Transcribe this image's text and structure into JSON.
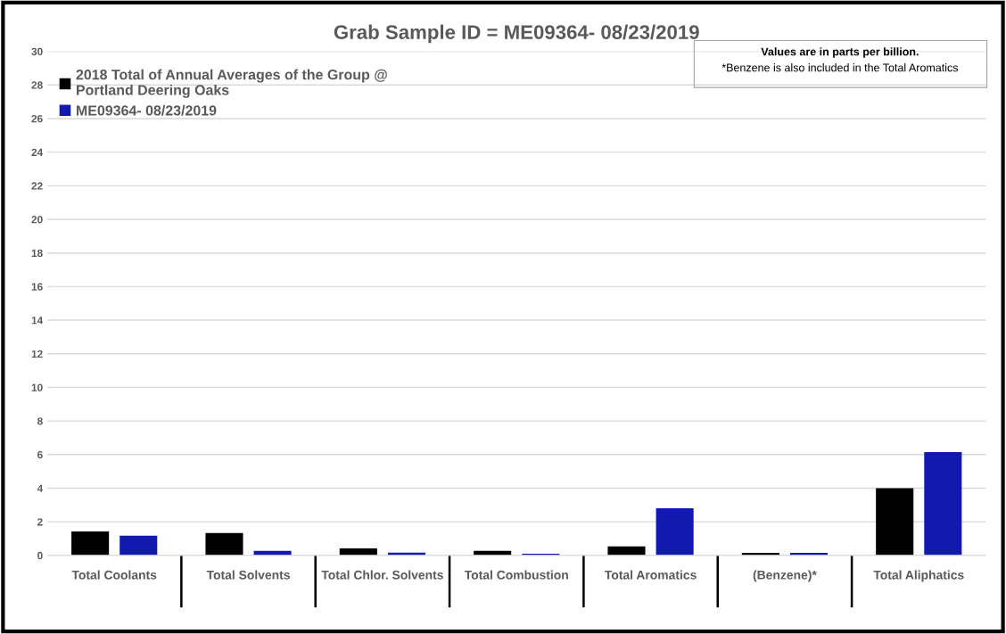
{
  "chart_data": {
    "type": "bar",
    "title": "Grab Sample ID = ME09364- 08/23/2019",
    "categories": [
      "Total Coolants",
      "Total Solvents",
      "Total Chlor. Solvents",
      "Total Combustion",
      "Total Aromatics",
      "(Benzene)*",
      "Total Aliphatics"
    ],
    "series": [
      {
        "name": "2018 Total of Annual Averages of the Group @\nPortland Deering Oaks",
        "color": "#000000",
        "values": [
          1.43,
          1.33,
          0.42,
          0.27,
          0.53,
          0.15,
          4.0
        ]
      },
      {
        "name": "ME09364- 08/23/2019",
        "color": "#1219b0",
        "values": [
          1.17,
          0.27,
          0.16,
          0.1,
          2.8,
          0.15,
          6.15
        ]
      }
    ],
    "ylim": [
      0,
      30
    ],
    "yticks": [
      0,
      2,
      4,
      6,
      8,
      10,
      12,
      14,
      16,
      18,
      20,
      22,
      24,
      26,
      28,
      30
    ],
    "grid": "y",
    "legend": "top left",
    "annotations": [
      "Values are in parts per billion.",
      "*Benzene is also included in the Total Aromatics"
    ]
  }
}
